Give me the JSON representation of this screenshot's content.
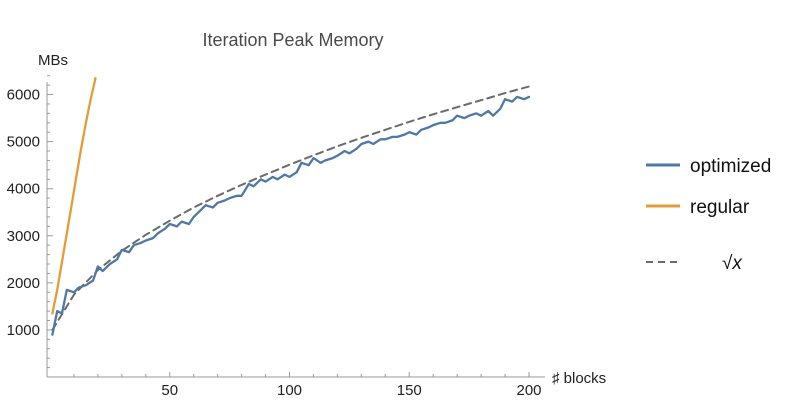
{
  "chart_data": {
    "type": "line",
    "title": "Iteration Peak Memory",
    "xlabel": "♯ blocks",
    "ylabel": "MBs",
    "xlim": [
      0,
      200
    ],
    "ylim": [
      0,
      6500
    ],
    "xticks": [
      50,
      100,
      150,
      200
    ],
    "yticks": [
      1000,
      2000,
      3000,
      4000,
      5000,
      6000
    ],
    "grid": false,
    "legend_position": "right",
    "series": [
      {
        "name": "optimized",
        "color": "#4e79a7",
        "style": "solid",
        "x": [
          1,
          3,
          5,
          7,
          10,
          12,
          15,
          18,
          20,
          22,
          25,
          28,
          30,
          33,
          35,
          38,
          40,
          43,
          45,
          48,
          50,
          53,
          55,
          58,
          60,
          63,
          65,
          68,
          70,
          73,
          75,
          78,
          80,
          83,
          85,
          88,
          90,
          93,
          95,
          98,
          100,
          103,
          105,
          108,
          110,
          113,
          115,
          118,
          120,
          123,
          125,
          128,
          130,
          133,
          135,
          138,
          140,
          143,
          145,
          148,
          150,
          153,
          155,
          158,
          160,
          163,
          165,
          168,
          170,
          173,
          175,
          178,
          180,
          183,
          185,
          188,
          190,
          193,
          195,
          198,
          200
        ],
        "values": [
          900,
          1400,
          1350,
          1850,
          1800,
          1900,
          1950,
          2050,
          2350,
          2250,
          2400,
          2500,
          2700,
          2650,
          2800,
          2850,
          2900,
          2950,
          3050,
          3150,
          3250,
          3200,
          3300,
          3250,
          3400,
          3550,
          3650,
          3600,
          3700,
          3750,
          3800,
          3850,
          3850,
          4100,
          4050,
          4200,
          4150,
          4250,
          4200,
          4300,
          4250,
          4350,
          4550,
          4500,
          4650,
          4550,
          4600,
          4650,
          4700,
          4800,
          4750,
          4850,
          4950,
          5000,
          4950,
          5050,
          5050,
          5100,
          5100,
          5150,
          5200,
          5150,
          5250,
          5300,
          5350,
          5400,
          5400,
          5450,
          5550,
          5500,
          5550,
          5600,
          5550,
          5650,
          5550,
          5700,
          5900,
          5850,
          5950,
          5900,
          5950
        ]
      },
      {
        "name": "regular",
        "color": "#e49c34",
        "style": "solid",
        "x": [
          1,
          3,
          5,
          7,
          9,
          11,
          13,
          15,
          17,
          19
        ],
        "values": [
          1350,
          1850,
          2450,
          3050,
          3650,
          4250,
          4850,
          5400,
          5900,
          6350
        ]
      },
      {
        "name": "√x",
        "color": "#6b6b6b",
        "style": "dashed",
        "x": [
          1,
          10,
          20,
          30,
          40,
          50,
          60,
          70,
          80,
          90,
          100,
          110,
          120,
          130,
          140,
          150,
          160,
          170,
          180,
          190,
          200
        ],
        "values": [
          1000,
          1750,
          2270,
          2680,
          3020,
          3320,
          3600,
          3850,
          4080,
          4300,
          4510,
          4710,
          4900,
          5080,
          5250,
          5420,
          5580,
          5730,
          5880,
          6030,
          6170
        ]
      }
    ]
  }
}
